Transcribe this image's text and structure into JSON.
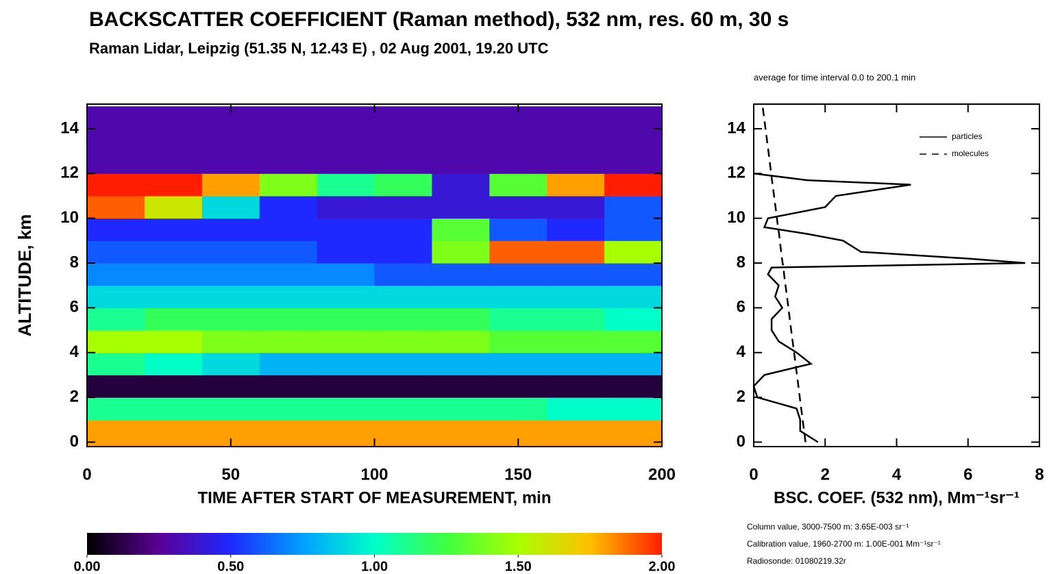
{
  "chart_data": [
    {
      "type": "heatmap",
      "title": "BACKSCATTER COEFFICIENT (Raman method), 532 nm, res. 60 m, 30 s",
      "subtitle": "Raman Lidar, Leipzig (51.35 N, 12.43 E) , 02 Aug 2001, 19.20 UTC",
      "xlabel": "TIME AFTER START OF MEASUREMENT, min",
      "ylabel": "ALTITUDE, km",
      "xlim": [
        0,
        200
      ],
      "xticks": [
        0,
        50,
        100,
        150,
        200
      ],
      "ylim": [
        -0.2,
        15.1
      ],
      "yticks": [
        0,
        2,
        4,
        6,
        8,
        10,
        12,
        14
      ],
      "xbins": [
        0,
        20,
        40,
        60,
        80,
        100,
        120,
        140,
        160,
        180,
        200
      ],
      "ybins": [
        -0.2,
        1,
        2,
        3,
        4,
        5,
        6,
        7,
        8,
        9,
        10,
        11,
        12,
        13,
        14,
        15
      ],
      "values": [
        [
          1.8,
          1.8,
          1.8,
          1.8,
          1.8,
          1.8,
          1.8,
          1.8,
          1.8,
          1.8
        ],
        [
          1.1,
          1.1,
          1.1,
          1.1,
          1.1,
          1.1,
          1.1,
          1.1,
          1.0,
          1.0
        ],
        [
          0.1,
          0.1,
          0.1,
          0.1,
          0.1,
          0.1,
          0.1,
          0.1,
          0.1,
          0.1
        ],
        [
          1.1,
          1.0,
          0.9,
          0.8,
          0.8,
          0.8,
          0.8,
          0.8,
          0.8,
          0.8
        ],
        [
          1.5,
          1.5,
          1.4,
          1.4,
          1.4,
          1.4,
          1.4,
          1.3,
          1.3,
          1.3
        ],
        [
          1.1,
          1.2,
          1.2,
          1.2,
          1.2,
          1.2,
          1.2,
          1.1,
          1.1,
          1.0
        ],
        [
          0.9,
          0.9,
          0.9,
          0.9,
          0.9,
          0.9,
          0.9,
          0.9,
          0.9,
          0.9
        ],
        [
          0.7,
          0.7,
          0.7,
          0.7,
          0.7,
          0.6,
          0.6,
          0.6,
          0.6,
          0.6
        ],
        [
          0.6,
          0.6,
          0.6,
          0.6,
          0.5,
          0.5,
          1.4,
          1.9,
          1.9,
          1.5
        ],
        [
          0.5,
          0.5,
          0.5,
          0.5,
          0.5,
          0.5,
          1.3,
          0.6,
          0.5,
          0.6
        ],
        [
          1.9,
          1.6,
          0.9,
          0.5,
          0.4,
          0.4,
          0.4,
          0.4,
          0.4,
          0.6
        ],
        [
          2.0,
          2.0,
          1.8,
          1.4,
          1.1,
          1.2,
          0.4,
          1.3,
          1.8,
          2.0
        ],
        [
          0.3,
          0.3,
          0.3,
          0.3,
          0.3,
          0.3,
          0.3,
          0.3,
          0.3,
          0.3
        ],
        [
          0.3,
          0.3,
          0.3,
          0.3,
          0.3,
          0.3,
          0.3,
          0.3,
          0.3,
          0.3
        ],
        [
          0.3,
          0.3,
          0.3,
          0.3,
          0.3,
          0.3,
          0.3,
          0.3,
          0.3,
          0.3
        ]
      ],
      "colorscale": {
        "values": [
          0,
          0.25,
          0.5,
          0.75,
          1,
          1.25,
          1.5,
          1.75,
          2
        ],
        "colors": [
          "#000000",
          "#5a0096",
          "#1e28ff",
          "#00a0ff",
          "#00ffc8",
          "#40ff40",
          "#a8ff00",
          "#ffc000",
          "#ff1e00"
        ]
      },
      "colorbar_ticks": [
        {
          "value": 0,
          "label": "0.00"
        },
        {
          "value": 0.5,
          "label": "0.50"
        },
        {
          "value": 1,
          "label": "1.00"
        },
        {
          "value": 1.5,
          "label": "1.50"
        },
        {
          "value": 2,
          "label": "2.00"
        }
      ]
    },
    {
      "type": "line",
      "annotation": "average for time interval 0.0 to 200.1 min",
      "xlabel": "BSC. COEF. (532 nm), Mm⁻¹sr⁻¹",
      "xlim": [
        0,
        8
      ],
      "xticks": [
        0,
        2,
        4,
        6,
        8
      ],
      "ylim": [
        -0.2,
        15.1
      ],
      "yticks": [
        0,
        2,
        4,
        6,
        8,
        10,
        12,
        14
      ],
      "legend": "upper right",
      "y": [
        0,
        0.5,
        1,
        1.5,
        2,
        2.5,
        3,
        3.5,
        4,
        4.5,
        5,
        5.5,
        6,
        6.5,
        7,
        7.5,
        7.8,
        8.0,
        8.2,
        8.5,
        9,
        9.3,
        9.6,
        10,
        10.5,
        11,
        11.5,
        11.7,
        12,
        13,
        14,
        15
      ],
      "series": [
        {
          "name": "particles",
          "color": "#000000",
          "dash": false,
          "values": [
            1.8,
            1.3,
            1.3,
            1.2,
            0.1,
            0.0,
            0.3,
            1.6,
            1.2,
            0.7,
            0.5,
            0.5,
            0.8,
            0.6,
            0.7,
            0.4,
            0.5,
            7.6,
            6.0,
            3.0,
            2.5,
            1.5,
            0.3,
            0.4,
            2.0,
            2.3,
            4.4,
            1.5,
            0.0,
            null,
            null,
            null
          ]
        },
        {
          "name": "molecules",
          "color": "#000000",
          "dash": true,
          "values": [
            1.45,
            1.41,
            1.37,
            1.33,
            1.29,
            1.25,
            1.21,
            1.17,
            1.13,
            1.09,
            1.05,
            1.01,
            0.97,
            0.93,
            0.89,
            0.85,
            0.83,
            0.81,
            0.79,
            0.77,
            0.73,
            0.71,
            0.68,
            0.65,
            0.61,
            0.57,
            0.53,
            0.51,
            0.49,
            0.41,
            0.33,
            0.25
          ]
        }
      ],
      "notes": [
        "Column value, 3000-7500 m: 3.65E-003 sr⁻¹",
        "Calibration value, 1960-2700 m: 1.00E-001 Mm⁻¹sr⁻¹",
        "Radiosonde: 01080219.32r"
      ]
    }
  ]
}
